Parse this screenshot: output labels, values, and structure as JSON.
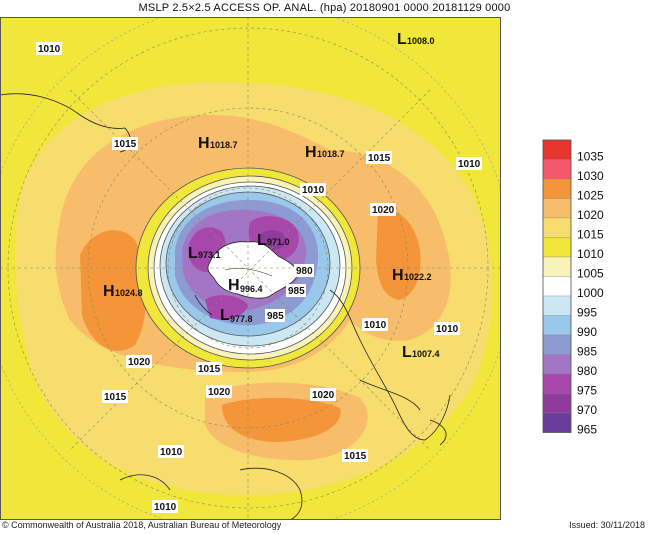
{
  "title": "MSLP  2.5×2.5 ACCESS OP. ANAL.  (hpa)  20180901 0000 20181129 0000",
  "footer": {
    "copyright": "© Commonwealth of Australia 2018, Australian Bureau of Meteorology",
    "issued": "Issued: 30/11/2018"
  },
  "legend": {
    "levels": [
      {
        "label": "1035",
        "color": "#e8352d"
      },
      {
        "label": "1030",
        "color": "#f4586a"
      },
      {
        "label": "1025",
        "color": "#f4953a"
      },
      {
        "label": "1020",
        "color": "#f8bd6a"
      },
      {
        "label": "1015",
        "color": "#f6dd6e"
      },
      {
        "label": "1010",
        "color": "#f1e63a"
      },
      {
        "label": "1005",
        "color": "#f8f3b8"
      },
      {
        "label": "1000",
        "color": "#ffffff"
      },
      {
        "label": "995",
        "color": "#cce7f4"
      },
      {
        "label": "990",
        "color": "#99c8ea"
      },
      {
        "label": "985",
        "color": "#8d9bd2"
      },
      {
        "label": "980",
        "color": "#a276c4"
      },
      {
        "label": "975",
        "color": "#a847ab"
      },
      {
        "label": "970",
        "color": "#8e3b9c"
      },
      {
        "label": "965",
        "color": "#6a3c9c"
      }
    ]
  },
  "pressure_centres": [
    {
      "type": "L",
      "value": "1008.0"
    },
    {
      "type": "H",
      "value": "1018.7"
    },
    {
      "type": "H",
      "value": "1018.7"
    },
    {
      "type": "H",
      "value": "1024.8"
    },
    {
      "type": "H",
      "value": "1022.2"
    },
    {
      "type": "L",
      "value": "1007.4"
    },
    {
      "type": "L",
      "value": "973.1"
    },
    {
      "type": "L",
      "value": "971.0"
    },
    {
      "type": "H",
      "value": "996.4"
    },
    {
      "type": "L",
      "value": "977.8"
    }
  ],
  "contour_labels": {
    "c1": "1010",
    "c2": "1015",
    "c3": "1015",
    "c4": "1010",
    "c5": "1010",
    "c6": "1020",
    "c7": "980",
    "c8": "985",
    "c9": "985",
    "c10": "1010",
    "c11": "1010",
    "c12": "1020",
    "c13": "1015",
    "c14": "1015",
    "c15": "1020",
    "c16": "1020",
    "c17": "1010",
    "c18": "1015",
    "c19": "1010"
  }
}
